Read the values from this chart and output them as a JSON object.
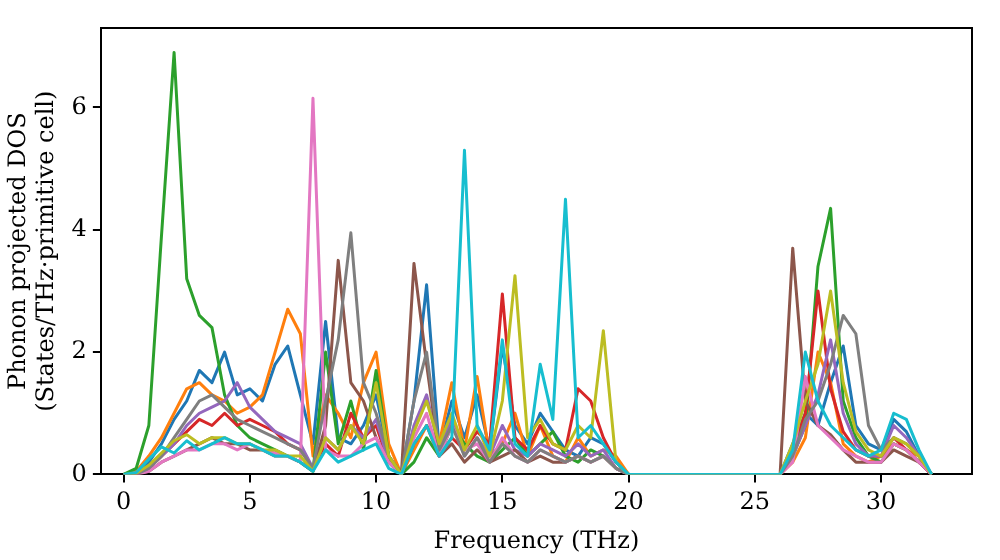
{
  "chart_data": {
    "type": "line",
    "xlabel": "Frequency (THz)",
    "ylabel": "Phonon projected DOS\n(States/THz·primitive cell)",
    "x": [
      0,
      0.5,
      1,
      1.5,
      2,
      2.5,
      3,
      3.5,
      4,
      4.5,
      5,
      5.5,
      6,
      6.5,
      7,
      7.5,
      8,
      8.5,
      9,
      9.5,
      10,
      10.5,
      11,
      11.5,
      12,
      12.5,
      13,
      13.5,
      14,
      14.5,
      15,
      15.5,
      16,
      16.5,
      17,
      17.5,
      18,
      18.5,
      19,
      19.5,
      20,
      20.5,
      21,
      21.5,
      22,
      22.5,
      23,
      23.5,
      24,
      24.5,
      25,
      25.5,
      26,
      26.5,
      27,
      27.5,
      28,
      28.5,
      29,
      29.5,
      30,
      30.5,
      31,
      31.5,
      32
    ],
    "xlim": [
      -0.9,
      33.6
    ],
    "xticks": [
      0,
      5,
      10,
      15,
      20,
      25,
      30
    ],
    "ylim": [
      0,
      7.3
    ],
    "yticks": [
      0,
      2,
      4,
      6
    ],
    "grid": false,
    "legend": false,
    "marker": "none",
    "line_style": "solid",
    "series": [
      {
        "color": "#1f77b4",
        "values": [
          0,
          0.05,
          0.2,
          0.5,
          0.9,
          1.2,
          1.7,
          1.5,
          2.0,
          1.3,
          1.4,
          1.2,
          1.8,
          2.1,
          1.3,
          0.5,
          2.5,
          0.6,
          0.5,
          0.8,
          1.3,
          0.3,
          0,
          1.2,
          3.1,
          0.4,
          1.2,
          0.6,
          1.3,
          0.4,
          2.1,
          0.8,
          0.5,
          1.0,
          0.7,
          0.4,
          0.3,
          0.6,
          0.5,
          0.2,
          0,
          0,
          0,
          0,
          0,
          0,
          0,
          0,
          0,
          0,
          0,
          0,
          0,
          0.5,
          1.0,
          0.8,
          1.5,
          2.1,
          0.8,
          0.5,
          0.4,
          0.9,
          0.7,
          0.3,
          0
        ]
      },
      {
        "color": "#ff7f0e",
        "values": [
          0,
          0.05,
          0.3,
          0.6,
          1.0,
          1.4,
          1.5,
          1.3,
          1.2,
          1.0,
          1.1,
          1.3,
          2.0,
          2.7,
          2.3,
          0.3,
          1.3,
          1.0,
          0.6,
          1.5,
          2.0,
          0.5,
          0,
          0.4,
          0.8,
          0.5,
          1.5,
          0.4,
          1.6,
          0.3,
          0.5,
          1.0,
          0.3,
          0.8,
          0.3,
          0.2,
          0.6,
          0.3,
          0.4,
          0.3,
          0,
          0,
          0,
          0,
          0,
          0,
          0,
          0,
          0,
          0,
          0,
          0,
          0,
          0.2,
          0.6,
          2.0,
          1.5,
          0.5,
          0.3,
          0.2,
          0.3,
          0.5,
          0.4,
          0.3,
          0
        ]
      },
      {
        "color": "#2ca02c",
        "values": [
          0,
          0.1,
          0.8,
          3.9,
          6.9,
          3.2,
          2.6,
          2.4,
          1.3,
          0.8,
          0.6,
          0.5,
          0.4,
          0.3,
          0.2,
          0.05,
          2.0,
          0.5,
          1.2,
          0.4,
          1.7,
          0.3,
          0,
          0.2,
          0.6,
          0.3,
          0.8,
          0.5,
          0.3,
          0.2,
          0.4,
          0.6,
          0.3,
          0.5,
          0.7,
          0.3,
          0.2,
          0.4,
          0.3,
          0.1,
          0,
          0,
          0,
          0,
          0,
          0,
          0,
          0,
          0,
          0,
          0,
          0,
          0,
          0.3,
          0.8,
          3.4,
          4.35,
          1.2,
          0.6,
          0.3,
          0.2,
          0.5,
          0.4,
          0.2,
          0
        ]
      },
      {
        "color": "#d62728",
        "values": [
          0,
          0,
          0.1,
          0.3,
          0.5,
          0.7,
          0.9,
          0.8,
          1.0,
          0.8,
          0.9,
          0.8,
          0.7,
          0.5,
          0.4,
          0.1,
          0.5,
          0.3,
          1.0,
          0.6,
          0.8,
          0.2,
          0,
          0.5,
          0.8,
          0.3,
          0.6,
          0.4,
          0.7,
          0.5,
          2.95,
          0.6,
          0.4,
          0.8,
          0.5,
          0.4,
          1.4,
          1.2,
          0.6,
          0.2,
          0,
          0,
          0,
          0,
          0,
          0,
          0,
          0,
          0,
          0,
          0,
          0,
          0,
          0.4,
          1.0,
          3.0,
          1.4,
          0.7,
          0.4,
          0.3,
          0.3,
          0.6,
          0.4,
          0.2,
          0
        ]
      },
      {
        "color": "#9467bd",
        "values": [
          0,
          0,
          0.1,
          0.3,
          0.5,
          0.8,
          1.0,
          1.1,
          1.2,
          1.5,
          1.1,
          0.9,
          0.7,
          0.6,
          0.5,
          0.1,
          0.6,
          0.4,
          0.8,
          0.6,
          0.9,
          0.2,
          0,
          0.8,
          1.3,
          0.4,
          0.9,
          0.3,
          0.6,
          0.3,
          0.8,
          0.4,
          0.3,
          0.5,
          0.4,
          0.3,
          0.5,
          0.3,
          0.4,
          0.1,
          0,
          0,
          0,
          0,
          0,
          0,
          0,
          0,
          0,
          0,
          0,
          0,
          0,
          0.3,
          0.8,
          1.3,
          2.2,
          1.0,
          0.5,
          0.3,
          0.3,
          0.8,
          0.6,
          0.3,
          0
        ]
      },
      {
        "color": "#8c564b",
        "values": [
          0,
          0,
          0.05,
          0.2,
          0.3,
          0.4,
          0.5,
          0.6,
          0.5,
          0.5,
          0.4,
          0.4,
          0.3,
          0.3,
          0.2,
          0.05,
          0.8,
          3.5,
          1.5,
          1.2,
          0.6,
          0.2,
          0,
          3.45,
          1.8,
          0.3,
          0.5,
          0.2,
          0.4,
          0.2,
          0.3,
          0.4,
          0.2,
          0.3,
          0.2,
          0.2,
          0.3,
          0.2,
          0.3,
          0.1,
          0,
          0,
          0,
          0,
          0,
          0,
          0,
          0,
          0,
          0,
          0,
          0,
          0,
          3.7,
          1.2,
          0.8,
          0.65,
          0.4,
          0.2,
          0.2,
          0.2,
          0.4,
          0.3,
          0.2,
          0
        ]
      },
      {
        "color": "#e377c2",
        "values": [
          0,
          0,
          0.05,
          0.2,
          0.3,
          0.4,
          0.4,
          0.5,
          0.5,
          0.4,
          0.5,
          0.4,
          0.35,
          0.3,
          0.2,
          6.15,
          0.4,
          0.3,
          0.3,
          0.5,
          0.6,
          0.2,
          0,
          0.6,
          1.0,
          0.3,
          0.8,
          0.4,
          0.5,
          0.2,
          0.6,
          0.3,
          0.2,
          0.4,
          0.3,
          0.2,
          0.3,
          0.2,
          0.3,
          0.1,
          0,
          0,
          0,
          0,
          0,
          0,
          0,
          0,
          0,
          0,
          0,
          0,
          0,
          0.2,
          1.6,
          0.8,
          0.6,
          0.4,
          0.3,
          0.2,
          0.2,
          0.5,
          0.4,
          0.2,
          0
        ]
      },
      {
        "color": "#7f7f7f",
        "values": [
          0,
          0,
          0.1,
          0.3,
          0.6,
          0.9,
          1.2,
          1.3,
          1.1,
          0.9,
          0.8,
          0.7,
          0.6,
          0.5,
          0.4,
          0.1,
          1.2,
          2.2,
          3.95,
          1.5,
          1.0,
          0.3,
          0,
          1.2,
          2.0,
          0.4,
          0.8,
          0.3,
          0.6,
          0.2,
          0.5,
          0.3,
          0.2,
          0.4,
          0.3,
          0.2,
          0.3,
          0.2,
          0.3,
          0.1,
          0,
          0,
          0,
          0,
          0,
          0,
          0,
          0,
          0,
          0,
          0,
          0,
          0,
          0.3,
          0.9,
          1.2,
          1.8,
          2.6,
          2.3,
          0.8,
          0.4,
          0.6,
          0.5,
          0.3,
          0
        ]
      },
      {
        "color": "#bcbd22",
        "values": [
          0,
          0.02,
          0.15,
          0.35,
          0.55,
          0.65,
          0.5,
          0.6,
          0.6,
          0.5,
          0.5,
          0.4,
          0.4,
          0.3,
          0.3,
          0.05,
          0.6,
          0.4,
          0.8,
          0.5,
          1.5,
          0.3,
          0,
          0.7,
          1.2,
          0.5,
          1.0,
          0.4,
          0.8,
          0.3,
          1.2,
          3.25,
          0.6,
          0.9,
          0.5,
          0.4,
          0.8,
          0.6,
          2.35,
          0.2,
          0,
          0,
          0,
          0,
          0,
          0,
          0,
          0,
          0,
          0,
          0,
          0,
          0,
          0.5,
          1.2,
          1.8,
          3.0,
          1.5,
          0.7,
          0.4,
          0.3,
          0.6,
          0.5,
          0.3,
          0
        ]
      },
      {
        "color": "#17becf",
        "values": [
          0,
          0.03,
          0.25,
          0.45,
          0.35,
          0.55,
          0.4,
          0.5,
          0.6,
          0.5,
          0.5,
          0.4,
          0.3,
          0.3,
          0.2,
          0.05,
          0.4,
          0.2,
          0.3,
          0.4,
          0.5,
          0.1,
          0,
          0.5,
          0.8,
          0.3,
          0.6,
          5.3,
          0.8,
          0.4,
          2.2,
          0.5,
          0.3,
          1.8,
          0.9,
          4.5,
          0.6,
          0.8,
          0.5,
          0.2,
          0,
          0,
          0,
          0,
          0,
          0,
          0,
          0,
          0,
          0,
          0,
          0,
          0,
          0.4,
          2.0,
          1.2,
          0.8,
          0.6,
          0.4,
          0.3,
          0.4,
          1.0,
          0.9,
          0.4,
          0
        ]
      }
    ]
  }
}
